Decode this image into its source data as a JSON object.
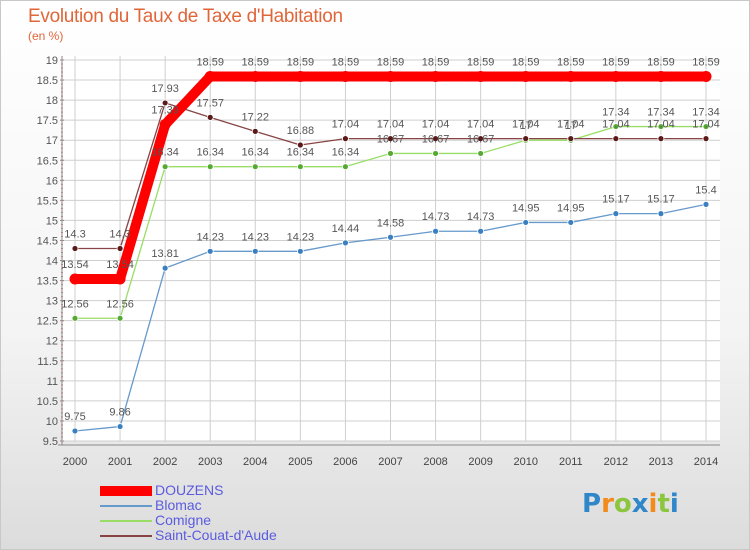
{
  "chart_data": {
    "type": "line",
    "title": "Evolution du Taux de Taxe d'Habitation",
    "ylabel": "(en %)",
    "xlabel": "",
    "ylim": [
      9.5,
      19
    ],
    "yticks": [
      "9.5",
      "10",
      "10.5",
      "11",
      "11.5",
      "12",
      "12.5",
      "13",
      "13.5",
      "14",
      "14.5",
      "15",
      "15.5",
      "16",
      "16.5",
      "17",
      "17.5",
      "18",
      "18.5",
      "19"
    ],
    "categories": [
      "2000",
      "2001",
      "2002",
      "2003",
      "2004",
      "2005",
      "2006",
      "2007",
      "2008",
      "2009",
      "2010",
      "2011",
      "2012",
      "2013",
      "2014"
    ],
    "series": [
      {
        "name": "Blomac",
        "color": "#6699cc",
        "marker": "#3a7fc0",
        "values": [
          9.75,
          9.86,
          13.81,
          14.23,
          14.23,
          14.23,
          14.44,
          14.58,
          14.73,
          14.73,
          14.95,
          14.95,
          15.17,
          15.17,
          15.4
        ],
        "labels": [
          "9.75",
          "9.86",
          "13.81",
          "14.23",
          "14.23",
          "14.23",
          "14.44",
          "14.58",
          "14.73",
          "14.73",
          "14.95",
          "14.95",
          "15.17",
          "15.17",
          "15.4"
        ]
      },
      {
        "name": "Comigne",
        "color": "#99dd66",
        "marker": "#55aa33",
        "values": [
          12.56,
          12.56,
          16.34,
          16.34,
          16.34,
          16.34,
          16.34,
          16.67,
          16.67,
          16.67,
          17.0,
          17.0,
          17.34,
          17.34,
          17.34
        ],
        "labels": [
          "12.56",
          "12.56",
          "16.34",
          "16.34",
          "16.34",
          "16.34",
          "16.34",
          "16.67",
          "16.67",
          "16.67",
          "17",
          "17",
          "17.34",
          "17.34",
          "17.34"
        ]
      },
      {
        "name": "Saint-Couat-d'Aude",
        "color": "#884444",
        "marker": "#5a1a1a",
        "values": [
          14.3,
          14.3,
          17.93,
          17.57,
          17.22,
          16.88,
          17.04,
          17.04,
          17.04,
          17.04,
          17.04,
          17.04,
          17.04,
          17.04,
          17.04
        ],
        "labels": [
          "14.3",
          "14.3",
          "17.93",
          "17.57",
          "17.22",
          "16.88",
          "17.04",
          "17.04",
          "17.04",
          "17.04",
          "17.04",
          "17.04",
          "17.04",
          "17.04",
          "17.04"
        ]
      },
      {
        "name": "DOUZENS",
        "color": "#ff0000",
        "marker": "#ff0000",
        "values": [
          13.54,
          13.54,
          17.39,
          18.59,
          18.59,
          18.59,
          18.59,
          18.59,
          18.59,
          18.59,
          18.59,
          18.59,
          18.59,
          18.59,
          18.59
        ],
        "labels": [
          "13.54",
          "13.54",
          "17.39",
          "18.59",
          "18.59",
          "18.59",
          "18.59",
          "18.59",
          "18.59",
          "18.59",
          "18.59",
          "18.59",
          "18.59",
          "18.59",
          "18.59"
        ]
      }
    ],
    "legend_order": [
      "DOUZENS",
      "Blomac",
      "Comigne",
      "Saint-Couat-d'Aude"
    ],
    "legend": "bottom-left"
  },
  "header": {
    "title": "Evolution du Taux de Taxe d'Habitation",
    "subtitle": "(en %)"
  },
  "legend": {
    "items": [
      {
        "label": "DOUZENS",
        "color": "#ff0000"
      },
      {
        "label": "Blomac",
        "color": "#6699cc"
      },
      {
        "label": "Comigne",
        "color": "#99dd66"
      },
      {
        "label": "Saint-Couat-d'Aude",
        "color": "#884444"
      }
    ]
  },
  "logo": {
    "text": "Proxiti",
    "letters": [
      "P",
      "r",
      "o",
      "x",
      "i",
      "t",
      "i"
    ],
    "colors": [
      "#2f86c8",
      "#f28a1c",
      "#8cc63f",
      "#2f86c8",
      "#f28a1c",
      "#8cc63f",
      "#2f86c8"
    ]
  }
}
